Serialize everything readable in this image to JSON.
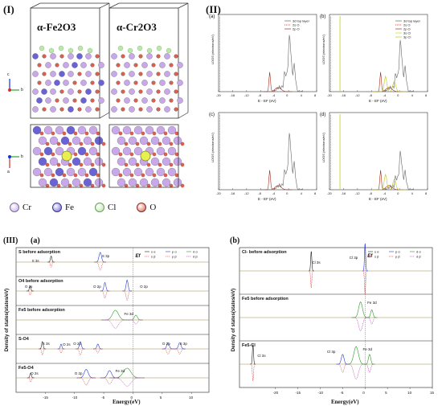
{
  "panels": {
    "I": "(I)",
    "II": "(II)",
    "III": "(III)"
  },
  "structures": {
    "fe2o3": "α-Fe2O3",
    "cr2o3": "α-Cr2O3"
  },
  "axes": {
    "c": "c",
    "b": "b",
    "a": "a"
  },
  "legend": [
    {
      "name": "Cr",
      "color": "#c8a8e8"
    },
    {
      "name": "Fe",
      "color": "#6a63d6"
    },
    {
      "name": "Cl",
      "color": "#b9e8a8"
    },
    {
      "name": "O",
      "color": "#d8604e"
    }
  ],
  "ldos": {
    "ylabel": "LDOS (electrons/eV)",
    "xlabel": "E - EF (eV)",
    "xticks": [
      "-20",
      "-16",
      "-12",
      "-8",
      "-4",
      "0",
      "4",
      "8"
    ],
    "a": {
      "tag": "(a)",
      "legend": [
        "3d top layer",
        "2s O",
        "2p O"
      ]
    },
    "b": {
      "tag": "(b)",
      "legend": [
        "3d top layer",
        "2s O",
        "2p O",
        "3s Cl",
        "3p Cl"
      ]
    },
    "c": {
      "tag": "(c)"
    },
    "d": {
      "tag": "(d)"
    }
  },
  "dos": {
    "tag_a": "(a)",
    "tag_b": "(b)",
    "ylabel": "Density of states(states/eV)",
    "xlabel": "Energy(eV)",
    "ef": "Ef",
    "legend_row1": [
      "s α",
      "p α",
      "d α"
    ],
    "legend_row2": [
      "s β",
      "p β",
      "d β"
    ],
    "a_rows": [
      {
        "title": "S before adsorption",
        "notes": [
          "S 3s",
          "S 3p"
        ]
      },
      {
        "title": "O4 before adsorption",
        "notes": [
          "O 2s",
          "O 2p",
          "O 2p"
        ]
      },
      {
        "title": "Fe5 before adsorption",
        "notes": [
          "Fe 3d"
        ]
      },
      {
        "title": "S-O4",
        "notes": [
          "S 3s",
          "O 2s",
          "O 2p",
          "O 2p",
          "S 3p"
        ]
      },
      {
        "title": "Fe5-O4",
        "notes": [
          "O 2s",
          "O 2p",
          "Fe 3d"
        ]
      }
    ],
    "b_rows": [
      {
        "title": "Cl- before adsorption",
        "notes": [
          "Cl 3s",
          "Cl 3p"
        ]
      },
      {
        "title": "Fe5 before adsorption",
        "notes": [
          "Fe 3d"
        ]
      },
      {
        "title": "Fe5-Cl",
        "notes": [
          "Cl 3s",
          "Cl 3p",
          "Fe 3d"
        ]
      }
    ],
    "a_xticks": [
      "-15",
      "-10",
      "-5",
      "0",
      "5",
      "10"
    ],
    "b_xticks": [
      "-20",
      "-15",
      "-10",
      "-5",
      "0",
      "5",
      "10",
      "15"
    ]
  }
}
